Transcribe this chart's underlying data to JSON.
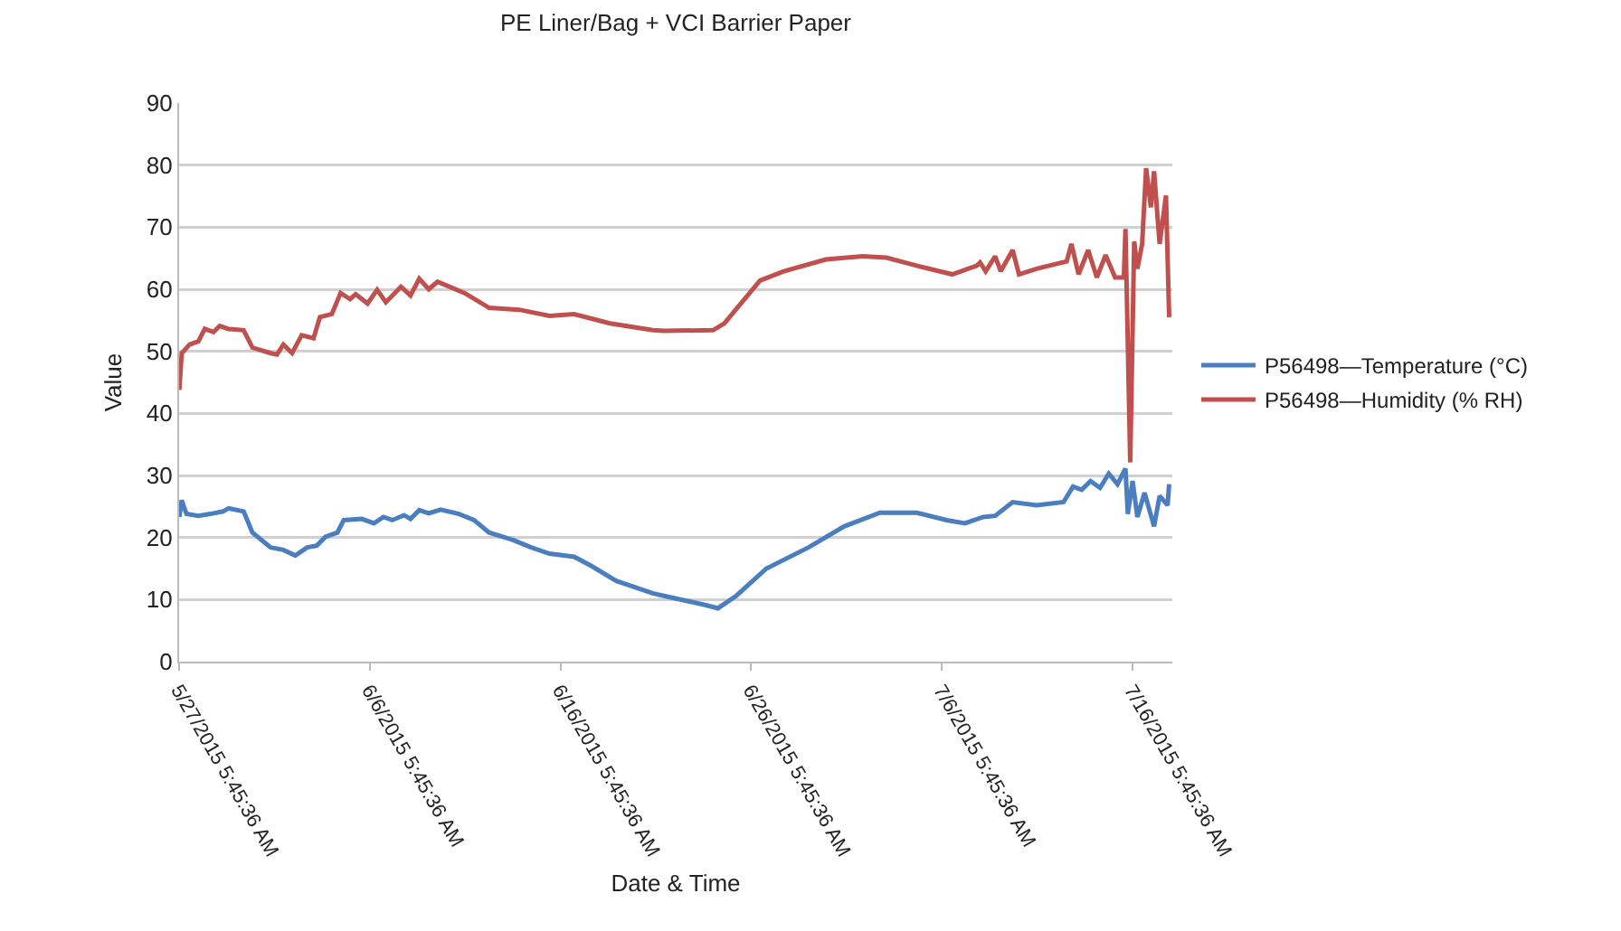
{
  "chart_data": {
    "type": "line",
    "title": "PE Liner/Bag + VCI Barrier Paper",
    "xlabel": "Date & Time",
    "ylabel": "Value",
    "xlim": [
      "2015-05-27T05:45",
      "2015-07-18T08:00"
    ],
    "xticks": [
      {
        "value": "2015-05-27T05:45",
        "label": "5/27/2015 5:45:36 AM"
      },
      {
        "value": "2015-06-06T05:45",
        "label": "6/6/2015 5:45:36 AM"
      },
      {
        "value": "2015-06-16T05:45",
        "label": "6/16/2015 5:45:36 AM"
      },
      {
        "value": "2015-06-26T05:45",
        "label": "6/26/2015 5:45:36 AM"
      },
      {
        "value": "2015-07-06T05:45",
        "label": "7/6/2015 5:45:36 AM"
      },
      {
        "value": "2015-07-16T05:45",
        "label": "7/16/2015 5:45:36 AM"
      }
    ],
    "ylim": [
      0,
      90
    ],
    "yticks": [
      0,
      10,
      20,
      30,
      40,
      50,
      60,
      70,
      80,
      90
    ],
    "grid": "y",
    "legend": "right",
    "marker": "none",
    "line_style": "solid",
    "series": [
      {
        "name": "P56498—Temperature (°C)",
        "color": "#4a7ebf",
        "x": [
          "2015-05-27T06:00",
          "2015-05-27T09:00",
          "2015-05-27T15:00",
          "2015-05-28T06:00",
          "2015-05-28T21:00",
          "2015-05-29T13:00",
          "2015-05-29T20:00",
          "2015-05-30T15:00",
          "2015-05-31T02:00",
          "2015-06-01T01:00",
          "2015-06-01T17:00",
          "2015-06-02T08:00",
          "2015-06-02T23:00",
          "2015-06-03T11:00",
          "2015-06-03T22:00",
          "2015-06-04T13:00",
          "2015-06-04T21:00",
          "2015-06-05T20:00",
          "2015-06-06T11:00",
          "2015-06-06T23:00",
          "2015-06-07T10:00",
          "2015-06-08T01:00",
          "2015-06-08T09:00",
          "2015-06-08T20:00",
          "2015-06-09T08:00",
          "2015-06-09T23:00",
          "2015-06-10T22:00",
          "2015-06-11T17:00",
          "2015-06-12T12:00",
          "2015-06-13T18:00",
          "2015-06-14T17:00",
          "2015-06-15T16:00",
          "2015-06-16T23:00",
          "2015-06-17T21:00",
          "2015-06-19T04:00",
          "2015-06-21T02:00",
          "2015-06-21T16:00",
          "2015-06-23T21:00",
          "2015-06-24T12:00",
          "2015-06-25T11:00",
          "2015-06-27T01:00",
          "2015-06-29T06:00",
          "2015-07-01T03:00",
          "2015-07-03T00:00",
          "2015-07-04T22:00",
          "2015-07-06T12:00",
          "2015-07-07T11:00",
          "2015-07-08T10:00",
          "2015-07-09T01:00",
          "2015-07-09T23:00",
          "2015-07-11T05:00",
          "2015-07-12T15:00",
          "2015-07-13T03:00",
          "2015-07-13T14:00",
          "2015-07-14T01:00",
          "2015-07-14T13:00",
          "2015-07-15T00:00",
          "2015-07-15T11:00",
          "2015-07-15T21:00",
          "2015-07-16T00:00",
          "2015-07-16T06:00",
          "2015-07-16T12:00",
          "2015-07-16T21:00",
          "2015-07-17T09:00",
          "2015-07-17T16:00",
          "2015-07-18T02:00",
          "2015-07-18T04:00"
        ],
        "values": [
          23.3,
          26,
          23.8,
          23.5,
          23.8,
          24.2,
          24.7,
          24.2,
          20.8,
          18.4,
          18,
          17.1,
          18.4,
          18.7,
          20.1,
          20.8,
          22.8,
          23,
          22.3,
          23.3,
          22.8,
          23.6,
          23,
          24.4,
          23.9,
          24.5,
          23.8,
          22.8,
          20.8,
          19.6,
          18.4,
          17.4,
          16.9,
          15.4,
          13,
          11,
          10.6,
          9.1,
          8.6,
          10.6,
          15,
          18.4,
          21.8,
          24,
          24,
          22.8,
          22.3,
          23.3,
          23.5,
          25.7,
          25.2,
          25.7,
          28.2,
          27.7,
          29.1,
          28,
          30.3,
          28.6,
          31.1,
          23.8,
          29.1,
          23.3,
          27.2,
          21.8,
          26.7,
          25.2,
          28.6
        ]
      },
      {
        "name": "P56498—Humidity (% RH)",
        "color": "#c0504d",
        "x": [
          "2015-05-27T06:00",
          "2015-05-27T09:00",
          "2015-05-27T19:00",
          "2015-05-28T06:00",
          "2015-05-28T14:00",
          "2015-05-29T01:00",
          "2015-05-29T09:00",
          "2015-05-29T20:00",
          "2015-05-30T15:00",
          "2015-05-31T02:00",
          "2015-06-01T01:00",
          "2015-06-01T09:00",
          "2015-06-01T17:00",
          "2015-06-02T04:00",
          "2015-06-02T16:00",
          "2015-06-03T07:00",
          "2015-06-03T15:00",
          "2015-06-04T06:00",
          "2015-06-04T17:00",
          "2015-06-05T05:00",
          "2015-06-05T12:00",
          "2015-06-06T03:00",
          "2015-06-06T15:00",
          "2015-06-07T02:00",
          "2015-06-07T21:00",
          "2015-06-08T09:00",
          "2015-06-08T20:00",
          "2015-06-09T08:00",
          "2015-06-09T19:00",
          "2015-06-11T05:00",
          "2015-06-12T12:00",
          "2015-06-14T02:00",
          "2015-06-15T16:00",
          "2015-06-16T23:00",
          "2015-06-18T20:00",
          "2015-06-21T02:00",
          "2015-06-21T16:00",
          "2015-06-24T06:00",
          "2015-06-24T20:00",
          "2015-06-26T17:00",
          "2015-06-27T23:00",
          "2015-06-30T04:00",
          "2015-07-02T02:00",
          "2015-07-03T08:00",
          "2015-07-04T22:00",
          "2015-07-06T19:00",
          "2015-07-08T02:00",
          "2015-07-08T06:00",
          "2015-07-08T13:00",
          "2015-07-09T01:00",
          "2015-07-09T08:00",
          "2015-07-09T23:00",
          "2015-07-10T07:00",
          "2015-07-11T05:00",
          "2015-07-12T19:00",
          "2015-07-13T01:00",
          "2015-07-13T10:00",
          "2015-07-13T22:00",
          "2015-07-14T09:00",
          "2015-07-14T20:00",
          "2015-07-15T08:00",
          "2015-07-15T19:00",
          "2015-07-15T21:00",
          "2015-07-16T03:00",
          "2015-07-16T08:00",
          "2015-07-16T12:00",
          "2015-07-16T18:00",
          "2015-07-16T23:00",
          "2015-07-17T05:00",
          "2015-07-17T09:00",
          "2015-07-17T16:00",
          "2015-07-18T00:00",
          "2015-07-18T04:00"
        ],
        "values": [
          43.8,
          49.7,
          51.1,
          51.6,
          53.6,
          53.1,
          54.1,
          53.6,
          53.4,
          50.6,
          49.7,
          49.5,
          51.1,
          49.7,
          52.6,
          52.1,
          55.5,
          56,
          59.4,
          58.4,
          59.2,
          57.7,
          59.9,
          57.9,
          60.4,
          59,
          61.7,
          60,
          61.2,
          59.4,
          57,
          56.7,
          55.7,
          56,
          54.5,
          53.4,
          53.3,
          53.4,
          54.5,
          61.4,
          62.9,
          64.8,
          65.3,
          65.1,
          63.8,
          62.4,
          63.8,
          64.3,
          62.9,
          65.3,
          62.9,
          66.3,
          62.4,
          63.3,
          64.5,
          67.3,
          62.4,
          66.3,
          61.9,
          65.5,
          61.9,
          61.9,
          69.7,
          32.1,
          67.7,
          63.3,
          67.3,
          79.5,
          73.2,
          79,
          67.3,
          75.1,
          55.5
        ]
      }
    ]
  }
}
